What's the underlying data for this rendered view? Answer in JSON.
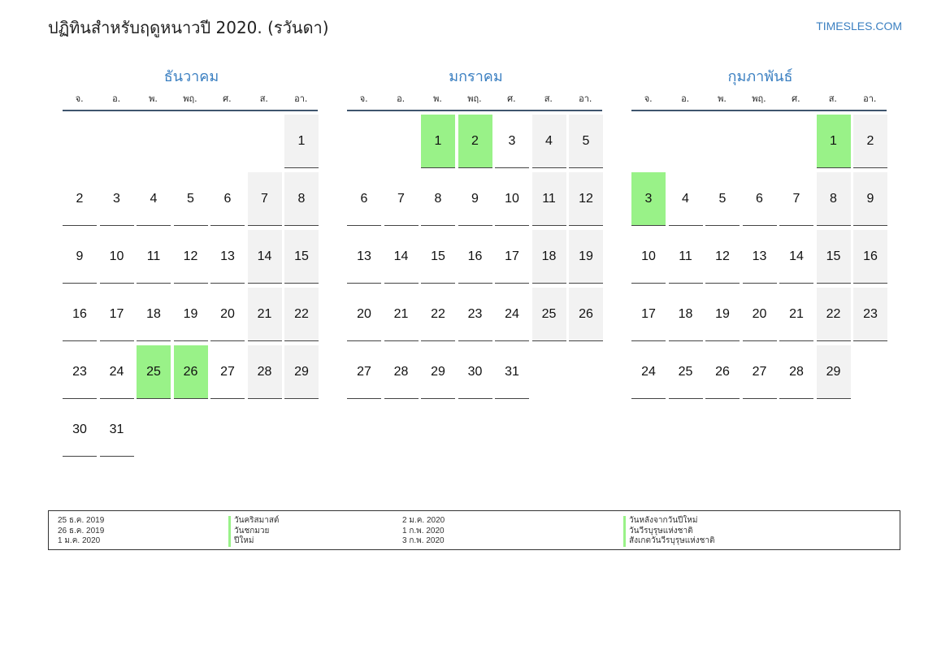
{
  "header": {
    "title": "ปฏิทินสำหรับฤดูหนาวปี 2020. (รวันดา)",
    "brand": "TIMESLES.COM"
  },
  "weekdays": [
    "จ.",
    "อ.",
    "พ.",
    "พฤ.",
    "ศ.",
    "ส.",
    "อา."
  ],
  "months": [
    {
      "name": "ธันวาคม",
      "offset": 6,
      "days": [
        "1",
        "2",
        "3",
        "4",
        "5",
        "6",
        "7",
        "8",
        "9",
        "10",
        "11",
        "12",
        "13",
        "14",
        "15",
        "16",
        "17",
        "18",
        "19",
        "20",
        "21",
        "22",
        "23",
        "24",
        "25",
        "26",
        "27",
        "28",
        "29",
        "30",
        "31"
      ],
      "holidays": [
        25,
        26
      ]
    },
    {
      "name": "มกราคม",
      "offset": 2,
      "days": [
        "1",
        "2",
        "3",
        "4",
        "5",
        "6",
        "7",
        "8",
        "9",
        "10",
        "11",
        "12",
        "13",
        "14",
        "15",
        "16",
        "17",
        "18",
        "19",
        "20",
        "21",
        "22",
        "23",
        "24",
        "25",
        "26",
        "27",
        "28",
        "29",
        "30",
        "31"
      ],
      "holidays": [
        1,
        2
      ]
    },
    {
      "name": "กุมภาพันธ์",
      "offset": 5,
      "days": [
        "1",
        "2",
        "3",
        "4",
        "5",
        "6",
        "7",
        "8",
        "9",
        "10",
        "11",
        "12",
        "13",
        "14",
        "15",
        "16",
        "17",
        "18",
        "19",
        "20",
        "21",
        "22",
        "23",
        "24",
        "25",
        "26",
        "27",
        "28",
        "29"
      ],
      "holidays": [
        1,
        3
      ]
    }
  ],
  "legend": {
    "dates_left": [
      "25 ธ.ค. 2019",
      "26 ธ.ค. 2019",
      "1 ม.ค. 2020"
    ],
    "names_left": [
      "วันคริสมาสต์",
      "วันชกมวย",
      "ปีใหม่"
    ],
    "dates_right": [
      "2 ม.ค. 2020",
      "1 ก.พ. 2020",
      "3 ก.พ. 2020"
    ],
    "names_right": [
      "วันหลังจากวันปีใหม่",
      "วันวีรบุรุษแห่งชาติ",
      "สังเกตวันวีรบุรุษแห่งชาติ"
    ]
  },
  "colors": {
    "accent": "#3a7fc1",
    "holiday": "#99f288",
    "weekend": "#f2f2f2",
    "header_rule": "#3f556e"
  }
}
